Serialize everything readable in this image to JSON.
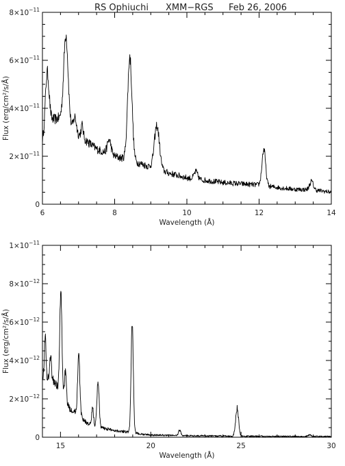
{
  "header": {
    "object": "RS Ophiuchi",
    "instrument": "XMM−RGS",
    "date": "Feb 26, 2006"
  },
  "chart_data": [
    {
      "type": "line",
      "title": "RS Ophiuchi   XMM−RGS   Feb 26, 2006",
      "xlabel": "Wavelength (Å)",
      "ylabel": "Flux (erg/cm²/s/Å)",
      "xlim": [
        6,
        14
      ],
      "ylim": [
        0,
        8e-11
      ],
      "x_ticks": [
        6,
        8,
        10,
        12,
        14
      ],
      "y_ticks": [
        {
          "value": 0,
          "mantissa": "0",
          "exponent": ""
        },
        {
          "value": 2e-11,
          "mantissa": "2×10",
          "exponent": "−11"
        },
        {
          "value": 4e-11,
          "mantissa": "4×10",
          "exponent": "−11"
        },
        {
          "value": 6e-11,
          "mantissa": "6×10",
          "exponent": "−11"
        },
        {
          "value": 8e-11,
          "mantissa": "8×10",
          "exponent": "−11"
        }
      ],
      "grid": false,
      "continuum": [
        [
          6.0,
          2.6
        ],
        [
          6.2,
          3.5
        ],
        [
          6.5,
          3.6
        ],
        [
          7.0,
          2.9
        ],
        [
          7.5,
          2.3
        ],
        [
          8.0,
          2.0
        ],
        [
          8.5,
          1.8
        ],
        [
          9.0,
          1.55
        ],
        [
          9.5,
          1.3
        ],
        [
          10.0,
          1.1
        ],
        [
          10.5,
          1.0
        ],
        [
          11.0,
          0.9
        ],
        [
          11.5,
          0.85
        ],
        [
          12.0,
          0.8
        ],
        [
          12.5,
          0.7
        ],
        [
          13.0,
          0.62
        ],
        [
          13.5,
          0.6
        ],
        [
          14.0,
          0.5
        ]
      ],
      "lines": [
        [
          6.13,
          2.3,
          0.05
        ],
        [
          6.65,
          3.7,
          0.06
        ],
        [
          6.9,
          0.6,
          0.04
        ],
        [
          7.1,
          0.5,
          0.03
        ],
        [
          7.85,
          0.6,
          0.05
        ],
        [
          8.42,
          4.3,
          0.06
        ],
        [
          9.17,
          1.8,
          0.07
        ],
        [
          10.25,
          0.3,
          0.05
        ],
        [
          12.13,
          1.5,
          0.05
        ],
        [
          13.45,
          0.35,
          0.05
        ]
      ],
      "noise_amplitude": 0.12,
      "flux_unit": 1e-11,
      "sample_step": 0.01
    },
    {
      "type": "line",
      "xlabel": "Wavelength (Å)",
      "ylabel": "Flux (erg/cm²/s/Å)",
      "xlim": [
        14,
        30
      ],
      "ylim": [
        0,
        1e-11
      ],
      "x_ticks": [
        15,
        20,
        25,
        30
      ],
      "y_ticks": [
        {
          "value": 0,
          "mantissa": "0",
          "exponent": ""
        },
        {
          "value": 2e-12,
          "mantissa": "2×10",
          "exponent": "−12"
        },
        {
          "value": 4e-12,
          "mantissa": "4×10",
          "exponent": "−12"
        },
        {
          "value": 6e-12,
          "mantissa": "6×10",
          "exponent": "−12"
        },
        {
          "value": 8e-12,
          "mantissa": "8×10",
          "exponent": "−12"
        },
        {
          "value": 1e-11,
          "mantissa": "1×10",
          "exponent": "−11"
        }
      ],
      "grid": false,
      "continuum": [
        [
          14.0,
          3.2
        ],
        [
          14.5,
          3.1
        ],
        [
          15.0,
          2.4
        ],
        [
          15.5,
          1.5
        ],
        [
          16.0,
          1.2
        ],
        [
          16.5,
          0.7
        ],
        [
          17.0,
          0.55
        ],
        [
          17.5,
          0.45
        ],
        [
          18.0,
          0.35
        ],
        [
          18.5,
          0.3
        ],
        [
          19.0,
          0.25
        ],
        [
          19.5,
          0.15
        ],
        [
          20.0,
          0.12
        ],
        [
          22.0,
          0.08
        ],
        [
          24.0,
          0.06
        ],
        [
          26.0,
          0.05
        ],
        [
          28.0,
          0.04
        ],
        [
          30.0,
          0.03
        ]
      ],
      "lines": [
        [
          14.15,
          2.2,
          0.04
        ],
        [
          14.45,
          1.2,
          0.04
        ],
        [
          15.02,
          5.2,
          0.06
        ],
        [
          15.27,
          1.5,
          0.05
        ],
        [
          16.01,
          3.1,
          0.06
        ],
        [
          16.78,
          0.9,
          0.05
        ],
        [
          17.08,
          2.4,
          0.06
        ],
        [
          18.97,
          5.8,
          0.06
        ],
        [
          21.6,
          0.3,
          0.06
        ],
        [
          24.78,
          1.45,
          0.08
        ],
        [
          28.8,
          0.08,
          0.08
        ]
      ],
      "noise_amplitude": 0.13,
      "flux_unit": 1e-12,
      "sample_step": 0.015
    }
  ]
}
